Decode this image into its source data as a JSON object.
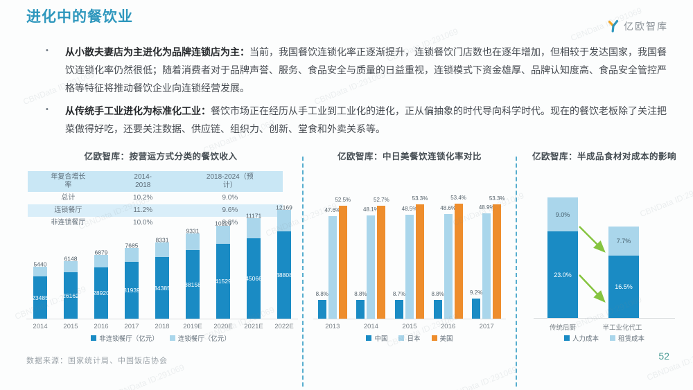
{
  "page": {
    "title": "进化中的餐饮业",
    "logo_text": "亿欧智库",
    "page_number": "52",
    "source_note": "数据来源：国家统计局、中国饭店协会",
    "watermark": "CBNData ID:291069"
  },
  "bullets": [
    {
      "lead": "从小散夫妻店为主进化为品牌连锁店为主：",
      "body": "当前，我国餐饮连锁化率正逐渐提升，连锁餐饮门店数也在逐年增加，但相较于发达国家，我国餐饮连锁化率仍然很低；随着消费者对于品牌声誉、服务、食品安全与质量的日益重视，连锁模式下资金雄厚、品牌认知度高、食品安全管控严格等特征将推动餐饮企业向连锁经营发展。"
    },
    {
      "lead": "从传统手工业进化为标准化工业：",
      "body": "餐饮市场正在经历从手工业到工业化的进化，正从偏抽象的时代导向科学时代。现在的餐饮老板除了关注把菜做得好吃，还要关注数据、供应链、组织力、创新、堂食和外卖关系等。"
    }
  ],
  "colors": {
    "accent": "#2e97bd",
    "bar_dark_blue": "#1a8bc4",
    "bar_light_blue": "#aad6eb",
    "bar_orange": "#ee8d2c",
    "arrow_green": "#86c440",
    "table_header_bg": "#c9e7f5",
    "table_alt_bg": "#d9eef9"
  },
  "chart_data": [
    {
      "type": "bar",
      "stacked": true,
      "title": "亿欧智库：按营运方式分类的餐饮收入",
      "categories": [
        "2014",
        "2015",
        "2016",
        "2017",
        "2018",
        "2019E",
        "2020E",
        "2021E",
        "2022E"
      ],
      "series": [
        {
          "name": "非连锁餐厅（亿元）",
          "color": "#1a8bc4",
          "values": [
            23485,
            26162,
            28920,
            31939,
            34385,
            38158,
            41529,
            45066,
            48808
          ]
        },
        {
          "name": "连锁餐厅（亿元）",
          "color": "#aad6eb",
          "values": [
            5440,
            6148,
            6879,
            7685,
            8331,
            9331,
            10229,
            11171,
            12169
          ]
        }
      ],
      "ylabel": "亿元",
      "legend_position": "bottom",
      "table": {
        "header": [
          "年复合增长\n率",
          "2014-\n2018",
          "2018-2024（预\n计）"
        ],
        "rows": [
          [
            "总计",
            "10.2%",
            "9.0%"
          ],
          [
            "连锁餐厅",
            "11.2%",
            "9.6%"
          ],
          [
            "非连锁餐厅",
            "10.0%",
            "8.8%"
          ]
        ]
      }
    },
    {
      "type": "bar",
      "grouped": true,
      "title": "亿欧智库：中日美餐饮连锁化率对比",
      "categories": [
        "2013",
        "2014",
        "2015",
        "2016",
        "2017"
      ],
      "series": [
        {
          "name": "中国",
          "color": "#1a8bc4",
          "values": [
            8.8,
            8.8,
            8.7,
            8.8,
            9.2
          ]
        },
        {
          "name": "日本",
          "color": "#aad6eb",
          "values": [
            47.6,
            48.1,
            48.5,
            48.6,
            48.9
          ]
        },
        {
          "name": "美国",
          "color": "#ee8d2c",
          "values": [
            52.5,
            52.7,
            53.3,
            53.4,
            53.3
          ]
        }
      ],
      "unit": "%",
      "ylim": [
        0,
        60
      ],
      "legend_position": "bottom"
    },
    {
      "type": "bar",
      "stacked": true,
      "title": "亿欧智库：半成品食材对成本的影响",
      "categories": [
        "传统后厨",
        "半工业化代工"
      ],
      "series": [
        {
          "name": "人力成本",
          "color": "#1a8bc4",
          "values": [
            23.0,
            16.5
          ]
        },
        {
          "name": "租赁成本",
          "color": "#aad6eb",
          "values": [
            9.0,
            7.7
          ]
        }
      ],
      "unit": "%",
      "annotation": "绿色箭头表示半工业化代工后成本下降",
      "legend_position": "bottom"
    }
  ]
}
